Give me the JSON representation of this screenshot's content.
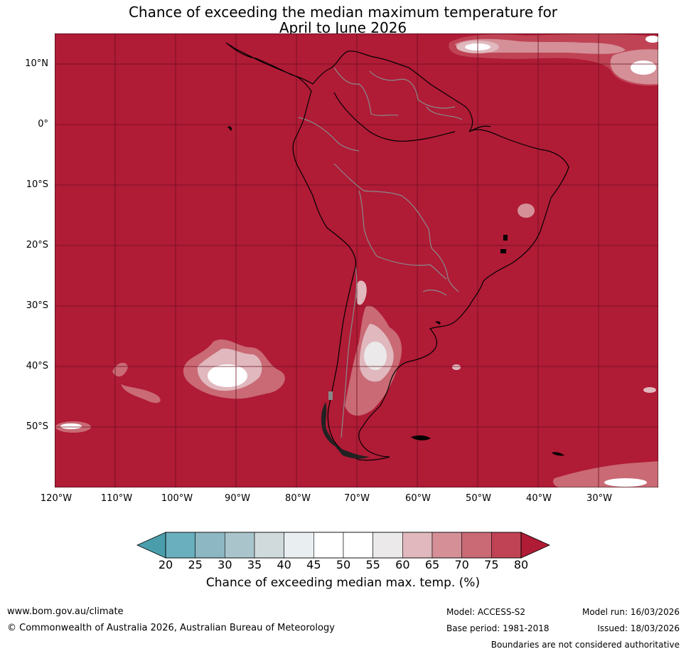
{
  "title_line1": "Chance of exceeding the median maximum temperature for",
  "title_line2": "April to June 2026",
  "lat_labels": [
    "10°N",
    "0°",
    "10°S",
    "20°S",
    "30°S",
    "40°S",
    "50°S"
  ],
  "lon_labels": [
    "120°W",
    "110°W",
    "100°W",
    "90°W",
    "80°W",
    "70°W",
    "60°W",
    "50°W",
    "40°W",
    "30°W"
  ],
  "colorbar": {
    "ticks": [
      "20",
      "25",
      "30",
      "35",
      "40",
      "45",
      "50",
      "55",
      "60",
      "65",
      "70",
      "75",
      "80"
    ],
    "colors": [
      "#6aafbe",
      "#8cb7c3",
      "#a9c5cb",
      "#d0d9dc",
      "#e9eff1",
      "#ffffff",
      "#ffffff",
      "#ebe9ea",
      "#e0b8bd",
      "#d48f97",
      "#c96a75",
      "#bf4354"
    ],
    "under_color": "#4a9eac",
    "over_color": "#b01b36",
    "label": "Chance of exceeding median max. temp. (%)"
  },
  "map_colors": {
    "base": "#b01b36",
    "level_75": "#bf4354",
    "level_70": "#c96a75",
    "level_65": "#d48f97",
    "level_60": "#e0b8bd",
    "level_55": "#ebe9ea",
    "level_50": "#ffffff",
    "coastline": "#000000",
    "borders": "#888888",
    "gridlines": "#6a1020"
  },
  "footer": {
    "website": "www.bom.gov.au/climate",
    "copyright": "© Commonwealth of Australia 2026, Australian Bureau of Meteorology",
    "model": "Model: ACCESS-S2",
    "base_period": "Base period: 1981-2018",
    "model_run": "Model run: 16/03/2026",
    "issued": "Issued: 18/03/2026",
    "disclaimer": "Boundaries are not considered authoritative"
  }
}
